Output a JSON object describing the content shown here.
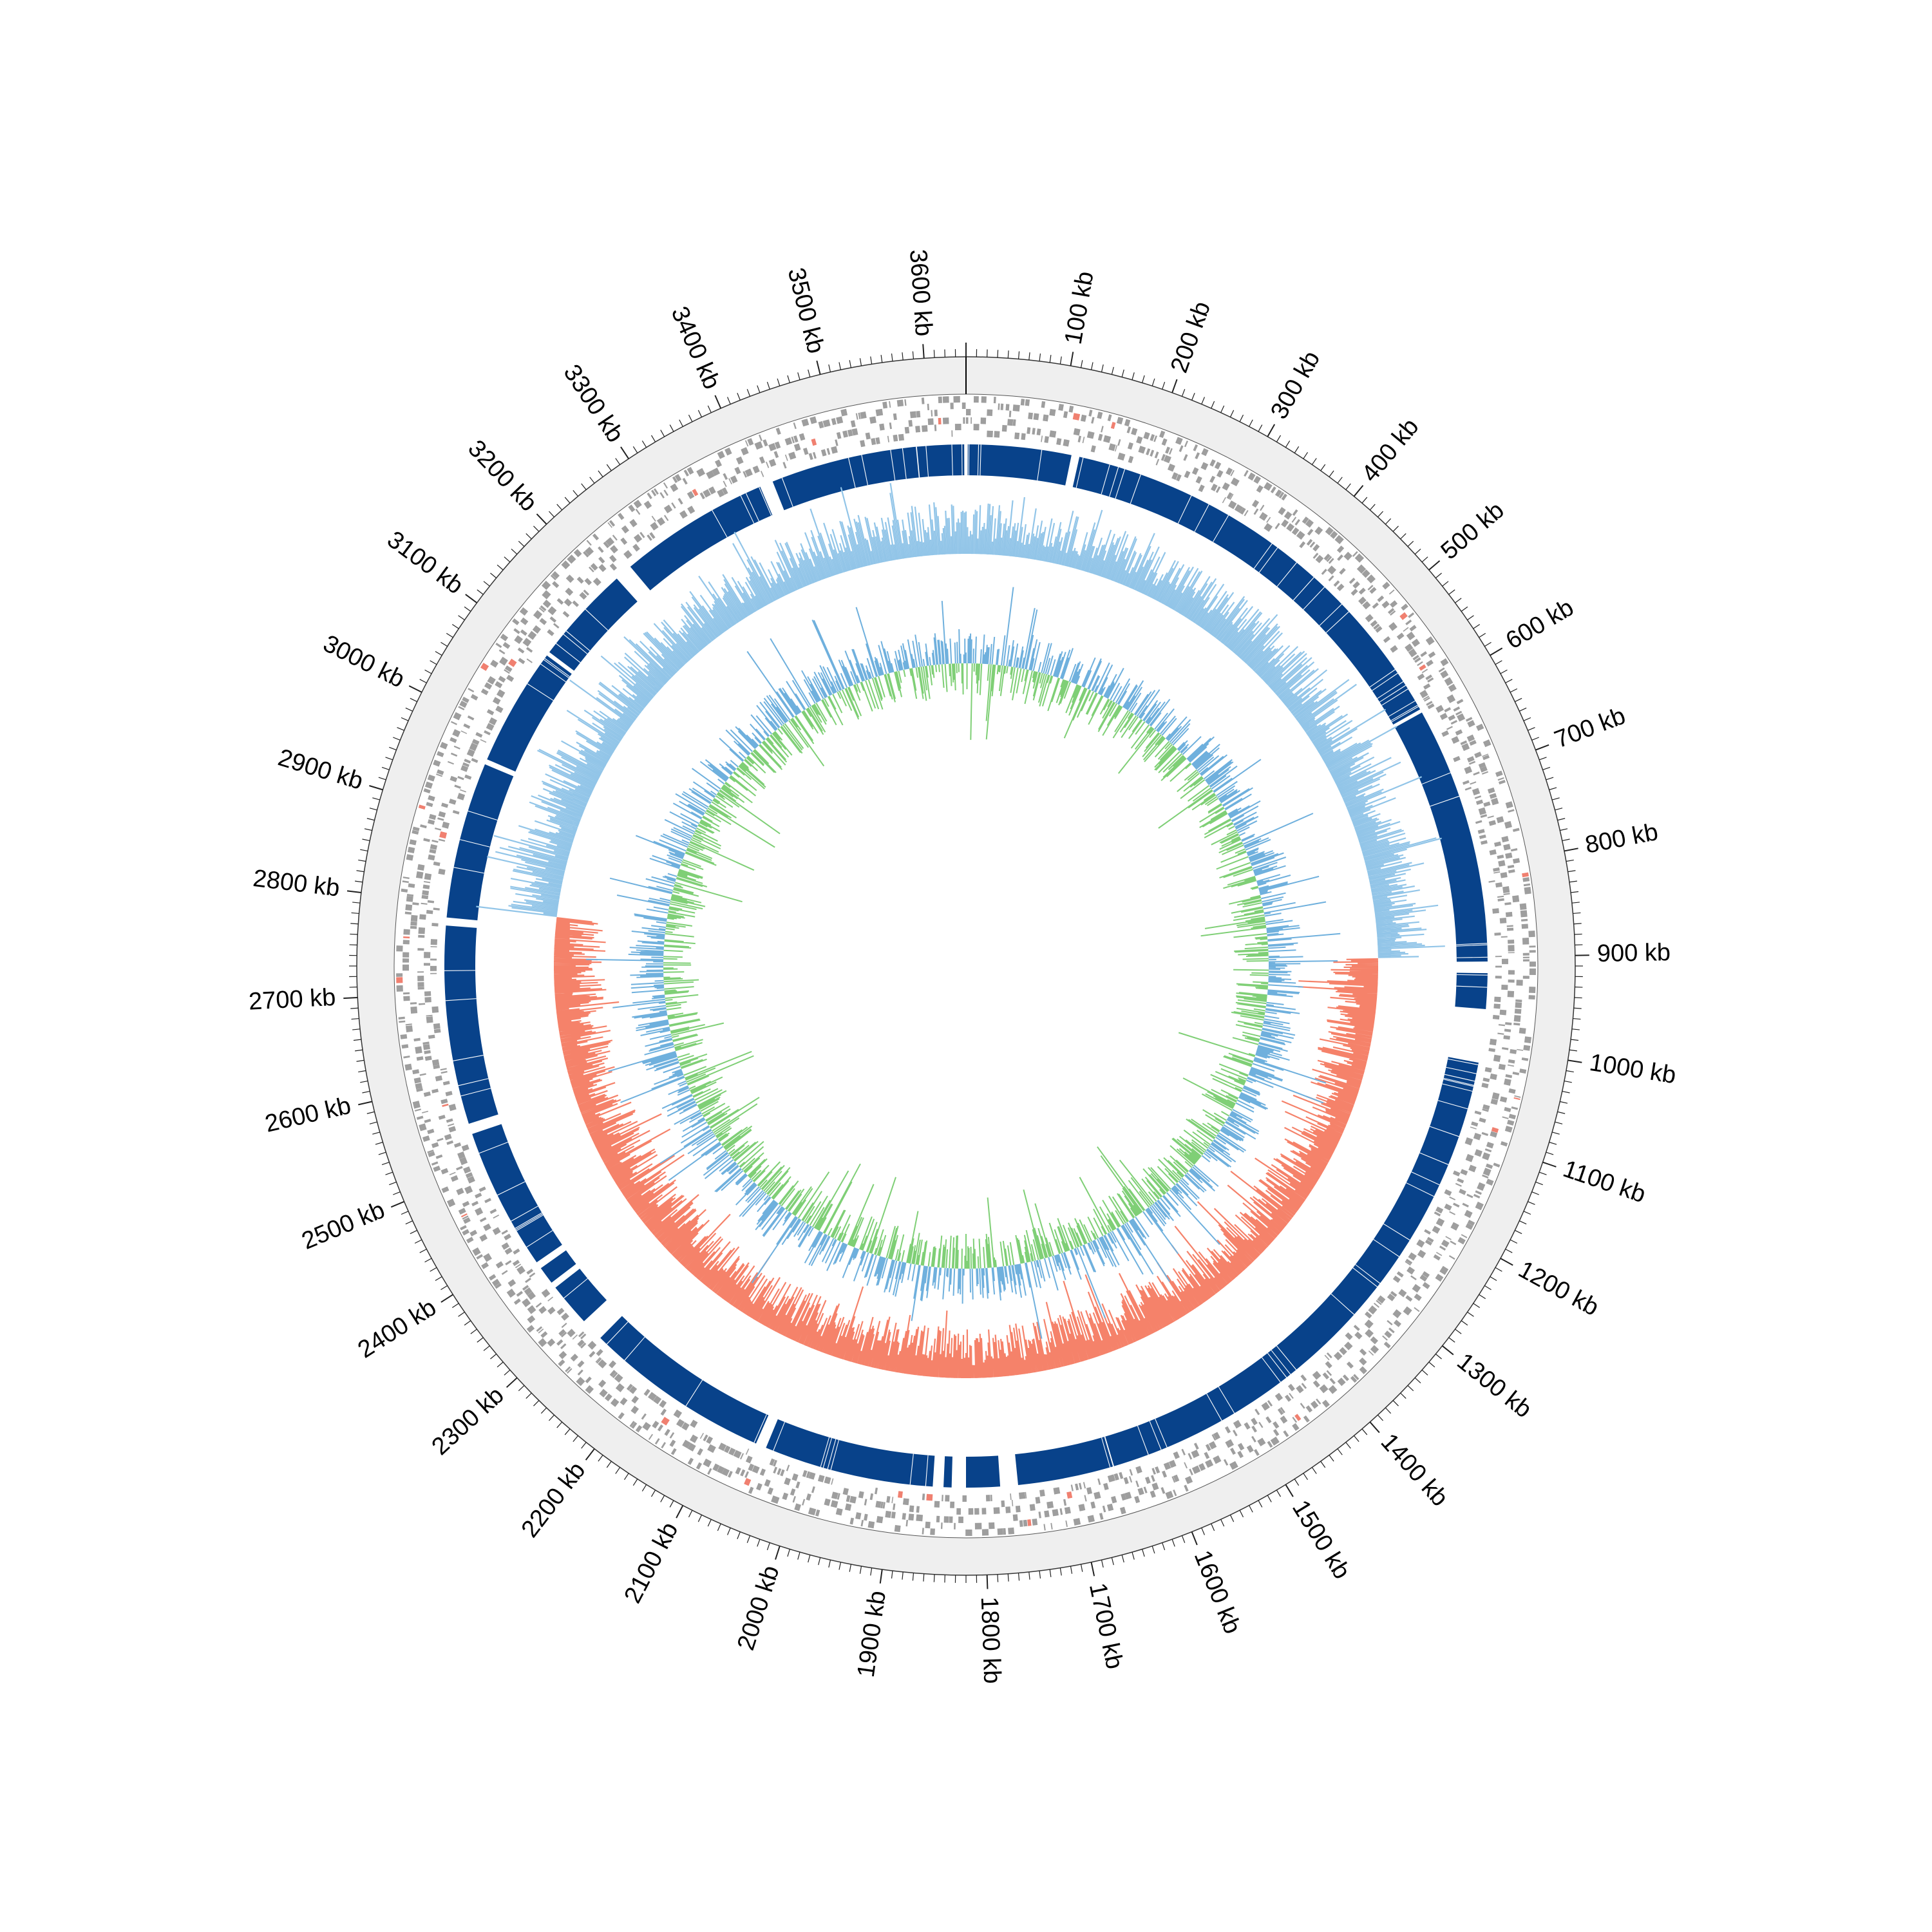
{
  "chart_data": {
    "type": "circular-genome-map",
    "title": "",
    "genome_length_kb": 3640,
    "major_tick_interval_kb": 100,
    "minor_tick_interval_kb": 10,
    "tick_label_unit": "kb",
    "tick_labels": [
      "100 kb",
      "200 kb",
      "300 kb",
      "400 kb",
      "500 kb",
      "600 kb",
      "700 kb",
      "800 kb",
      "900 kb",
      "1000 kb",
      "1100 kb",
      "1200 kb",
      "1300 kb",
      "1400 kb",
      "1500 kb",
      "1600 kb",
      "1700 kb",
      "1800 kb",
      "1900 kb",
      "2000 kb",
      "2100 kb",
      "2200 kb",
      "2300 kb",
      "2400 kb",
      "2500 kb",
      "2600 kb",
      "2700 kb",
      "2800 kb",
      "2900 kb",
      "3000 kb",
      "3100 kb",
      "3200 kb",
      "3300 kb",
      "3400 kb",
      "3500 kb",
      "3600 kb"
    ],
    "tracks": [
      {
        "name": "outline_band",
        "type": "band",
        "color": "#efefef"
      },
      {
        "name": "features_forward",
        "type": "features",
        "color": "#9e9e9e",
        "accent_color": "#f08070"
      },
      {
        "name": "features_reverse",
        "type": "features",
        "color": "#9e9e9e",
        "accent_color": "#f08070"
      },
      {
        "name": "sequence_blocks",
        "type": "blocks",
        "color": "#08428a",
        "gaps_kb": [
          [
            118,
            127
          ],
          [
            612,
            616
          ],
          [
            905,
            918
          ],
          [
            958,
            1018
          ],
          [
            1762,
            1782
          ],
          [
            1820,
            1836
          ],
          [
            1845,
            1857
          ],
          [
            2048,
            2060
          ],
          [
            2270,
            2296
          ],
          [
            2345,
            2352
          ],
          [
            2372,
            2380
          ],
          [
            2540,
            2552
          ],
          [
            2775,
            2784
          ],
          [
            2960,
            2966
          ],
          [
            3100,
            3104
          ],
          [
            3215,
            3235
          ],
          [
            3405,
            3420
          ]
        ]
      },
      {
        "name": "gc_content",
        "type": "line",
        "color_above": "#92c5e8",
        "color_below": "#f5826a",
        "note_segments_kb": [
          [
            0,
            900,
            "above"
          ],
          [
            900,
            2800,
            "below"
          ],
          [
            2800,
            3640,
            "above"
          ]
        ]
      },
      {
        "name": "gc_skew",
        "type": "line",
        "color_positive": "#6fb0dd",
        "color_negative": "#7fcf76"
      }
    ],
    "grid": false,
    "legend": "none"
  }
}
